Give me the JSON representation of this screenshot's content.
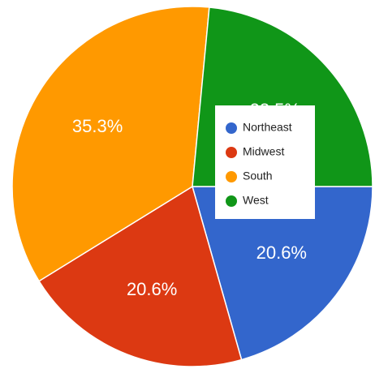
{
  "chart_data": {
    "type": "pie",
    "categories": [
      "Northeast",
      "Midwest",
      "South",
      "West"
    ],
    "values": [
      20.6,
      20.6,
      35.3,
      23.5
    ],
    "value_labels": [
      "20.6%",
      "20.6%",
      "35.3%",
      "23.5%"
    ],
    "colors": [
      "#3366cc",
      "#dc3912",
      "#ff9900",
      "#109618"
    ],
    "legend": "right"
  }
}
